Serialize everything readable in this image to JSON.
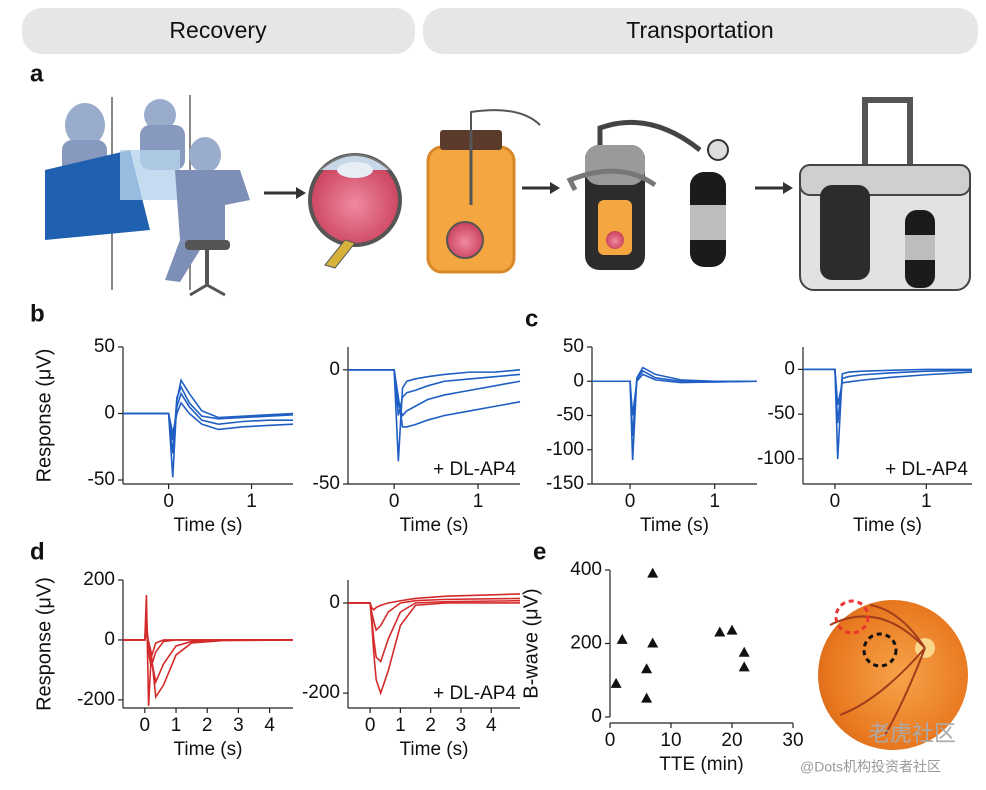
{
  "headers": [
    "Recovery",
    "Transportation"
  ],
  "panels": [
    "a",
    "b",
    "c",
    "d",
    "e"
  ],
  "watermarks": [
    "老虎社区",
    "@Dots机构投资者社区"
  ],
  "chart_data": [
    {
      "type": "line",
      "color": "#1f5fc4",
      "ylabel": "Response (μV)",
      "xlabel": "Time (s)",
      "xlim": [
        -0.55,
        1.5
      ],
      "xticks": [
        0,
        1
      ],
      "ylim": [
        -53,
        50
      ],
      "yticks": [
        -50,
        0,
        50
      ],
      "x": [
        -0.55,
        0,
        0.05,
        0.1,
        0.15,
        0.25,
        0.4,
        0.6,
        0.9,
        1.2,
        1.5
      ],
      "series": [
        {
          "values": [
            0,
            0,
            -48,
            10,
            25,
            15,
            2,
            -3,
            -2,
            -1,
            0
          ]
        },
        {
          "values": [
            0,
            0,
            -30,
            12,
            20,
            8,
            -2,
            -4,
            -3,
            -2,
            -1
          ]
        },
        {
          "values": [
            0,
            0,
            -20,
            5,
            15,
            5,
            -5,
            -8,
            -6,
            -5,
            -5
          ]
        },
        {
          "values": [
            0,
            0,
            -15,
            0,
            8,
            0,
            -8,
            -12,
            -10,
            -9,
            -8
          ]
        }
      ]
    },
    {
      "type": "line",
      "color": "#1f5fc4",
      "xlabel": "Time (s)",
      "annotation": "+ DL-AP4",
      "xlim": [
        -0.55,
        1.5
      ],
      "xticks": [
        0,
        1
      ],
      "ylim": [
        -50,
        10
      ],
      "yticks": [
        -50,
        0
      ],
      "x": [
        -0.55,
        0,
        0.05,
        0.1,
        0.15,
        0.25,
        0.4,
        0.6,
        0.9,
        1.2,
        1.5
      ],
      "series": [
        {
          "values": [
            0,
            0,
            -40,
            -8,
            -5,
            -4,
            -3,
            -2,
            -1,
            -1,
            0
          ]
        },
        {
          "values": [
            0,
            0,
            -20,
            -12,
            -10,
            -9,
            -7,
            -5,
            -4,
            -3,
            -2
          ]
        },
        {
          "values": [
            0,
            0,
            -15,
            -20,
            -18,
            -16,
            -13,
            -11,
            -9,
            -7,
            -5
          ]
        },
        {
          "values": [
            0,
            0,
            -12,
            -25,
            -25,
            -24,
            -22,
            -20,
            -18,
            -16,
            -14
          ]
        }
      ]
    },
    {
      "type": "line",
      "color": "#1f5fc4",
      "xlabel": "Time (s)",
      "xlim": [
        -0.45,
        1.5
      ],
      "xticks": [
        0,
        1
      ],
      "ylim": [
        -150,
        50
      ],
      "yticks": [
        -150,
        -100,
        -50,
        0,
        50
      ],
      "x": [
        -0.45,
        0,
        0.03,
        0.08,
        0.15,
        0.3,
        0.6,
        1,
        1.5
      ],
      "series": [
        {
          "values": [
            0,
            0,
            -115,
            5,
            20,
            10,
            2,
            0,
            0
          ]
        },
        {
          "values": [
            0,
            0,
            -80,
            3,
            15,
            5,
            0,
            -1,
            0
          ]
        },
        {
          "values": [
            0,
            0,
            -50,
            0,
            10,
            2,
            -2,
            -1,
            0
          ]
        }
      ]
    },
    {
      "type": "line",
      "color": "#1f5fc4",
      "xlabel": "Time (s)",
      "annotation": "+ DL-AP4",
      "xlim": [
        -0.35,
        1.5
      ],
      "xticks": [
        0,
        1
      ],
      "ylim": [
        -128,
        25
      ],
      "yticks": [
        -100,
        -50,
        0
      ],
      "x": [
        -0.35,
        0,
        0.03,
        0.08,
        0.15,
        0.3,
        0.6,
        1,
        1.5
      ],
      "series": [
        {
          "values": [
            0,
            0,
            -100,
            -5,
            -3,
            -2,
            -1,
            0,
            0
          ]
        },
        {
          "values": [
            0,
            0,
            -60,
            -10,
            -8,
            -6,
            -4,
            -2,
            -1
          ]
        },
        {
          "values": [
            0,
            0,
            -40,
            -15,
            -14,
            -12,
            -9,
            -6,
            -3
          ]
        }
      ]
    },
    {
      "type": "line",
      "color": "#d42a2a",
      "ylabel": "Response (μV)",
      "xlabel": "Time (s)",
      "xlim": [
        -0.7,
        4.75
      ],
      "xticks": [
        0,
        1,
        2,
        3,
        4
      ],
      "ylim": [
        -227,
        200
      ],
      "yticks": [
        -200,
        0,
        200
      ],
      "x": [
        -0.7,
        0,
        0.05,
        0.12,
        0.2,
        0.35,
        0.6,
        1,
        1.5,
        2.5,
        4.75
      ],
      "series": [
        {
          "values": [
            0,
            0,
            150,
            -220,
            -60,
            -10,
            0,
            0,
            0,
            0,
            0
          ]
        },
        {
          "values": [
            0,
            0,
            80,
            -40,
            -90,
            -40,
            -5,
            0,
            0,
            0,
            0
          ]
        },
        {
          "values": [
            0,
            0,
            40,
            -10,
            -60,
            -140,
            -80,
            -20,
            -5,
            0,
            0
          ]
        },
        {
          "values": [
            0,
            0,
            20,
            -5,
            -40,
            -190,
            -150,
            -50,
            -10,
            -2,
            0
          ]
        }
      ]
    },
    {
      "type": "line",
      "color": "#d42a2a",
      "xlabel": "Time (s)",
      "annotation": "+ DL-AP4",
      "xlim": [
        -0.73,
        4.95
      ],
      "xticks": [
        0,
        1,
        2,
        3,
        4
      ],
      "ylim": [
        -233,
        51
      ],
      "yticks": [
        -200,
        0
      ],
      "x": [
        -0.73,
        0,
        0.05,
        0.12,
        0.2,
        0.35,
        0.6,
        1,
        1.5,
        2.5,
        4.95
      ],
      "series": [
        {
          "values": [
            0,
            0,
            -10,
            -15,
            -10,
            -5,
            0,
            5,
            10,
            15,
            20
          ]
        },
        {
          "values": [
            0,
            0,
            -20,
            -40,
            -60,
            -50,
            -20,
            0,
            5,
            8,
            10
          ]
        },
        {
          "values": [
            0,
            0,
            -30,
            -80,
            -120,
            -130,
            -80,
            -20,
            0,
            3,
            5
          ]
        },
        {
          "values": [
            0,
            0,
            -40,
            -110,
            -170,
            -200,
            -150,
            -50,
            -5,
            0,
            0
          ]
        }
      ]
    },
    {
      "type": "scatter",
      "color": "#111111",
      "ylabel": "B-wave (μV)",
      "xlabel": "TTE (min)",
      "xlim": [
        0,
        30
      ],
      "xticks": [
        0,
        10,
        20,
        30
      ],
      "ylim": [
        0,
        400
      ],
      "yticks": [
        0,
        200,
        400
      ],
      "x": [
        1,
        2,
        6,
        6,
        7,
        7,
        18,
        20,
        22,
        22
      ],
      "values": [
        90,
        210,
        130,
        50,
        390,
        200,
        230,
        235,
        175,
        135
      ]
    }
  ]
}
